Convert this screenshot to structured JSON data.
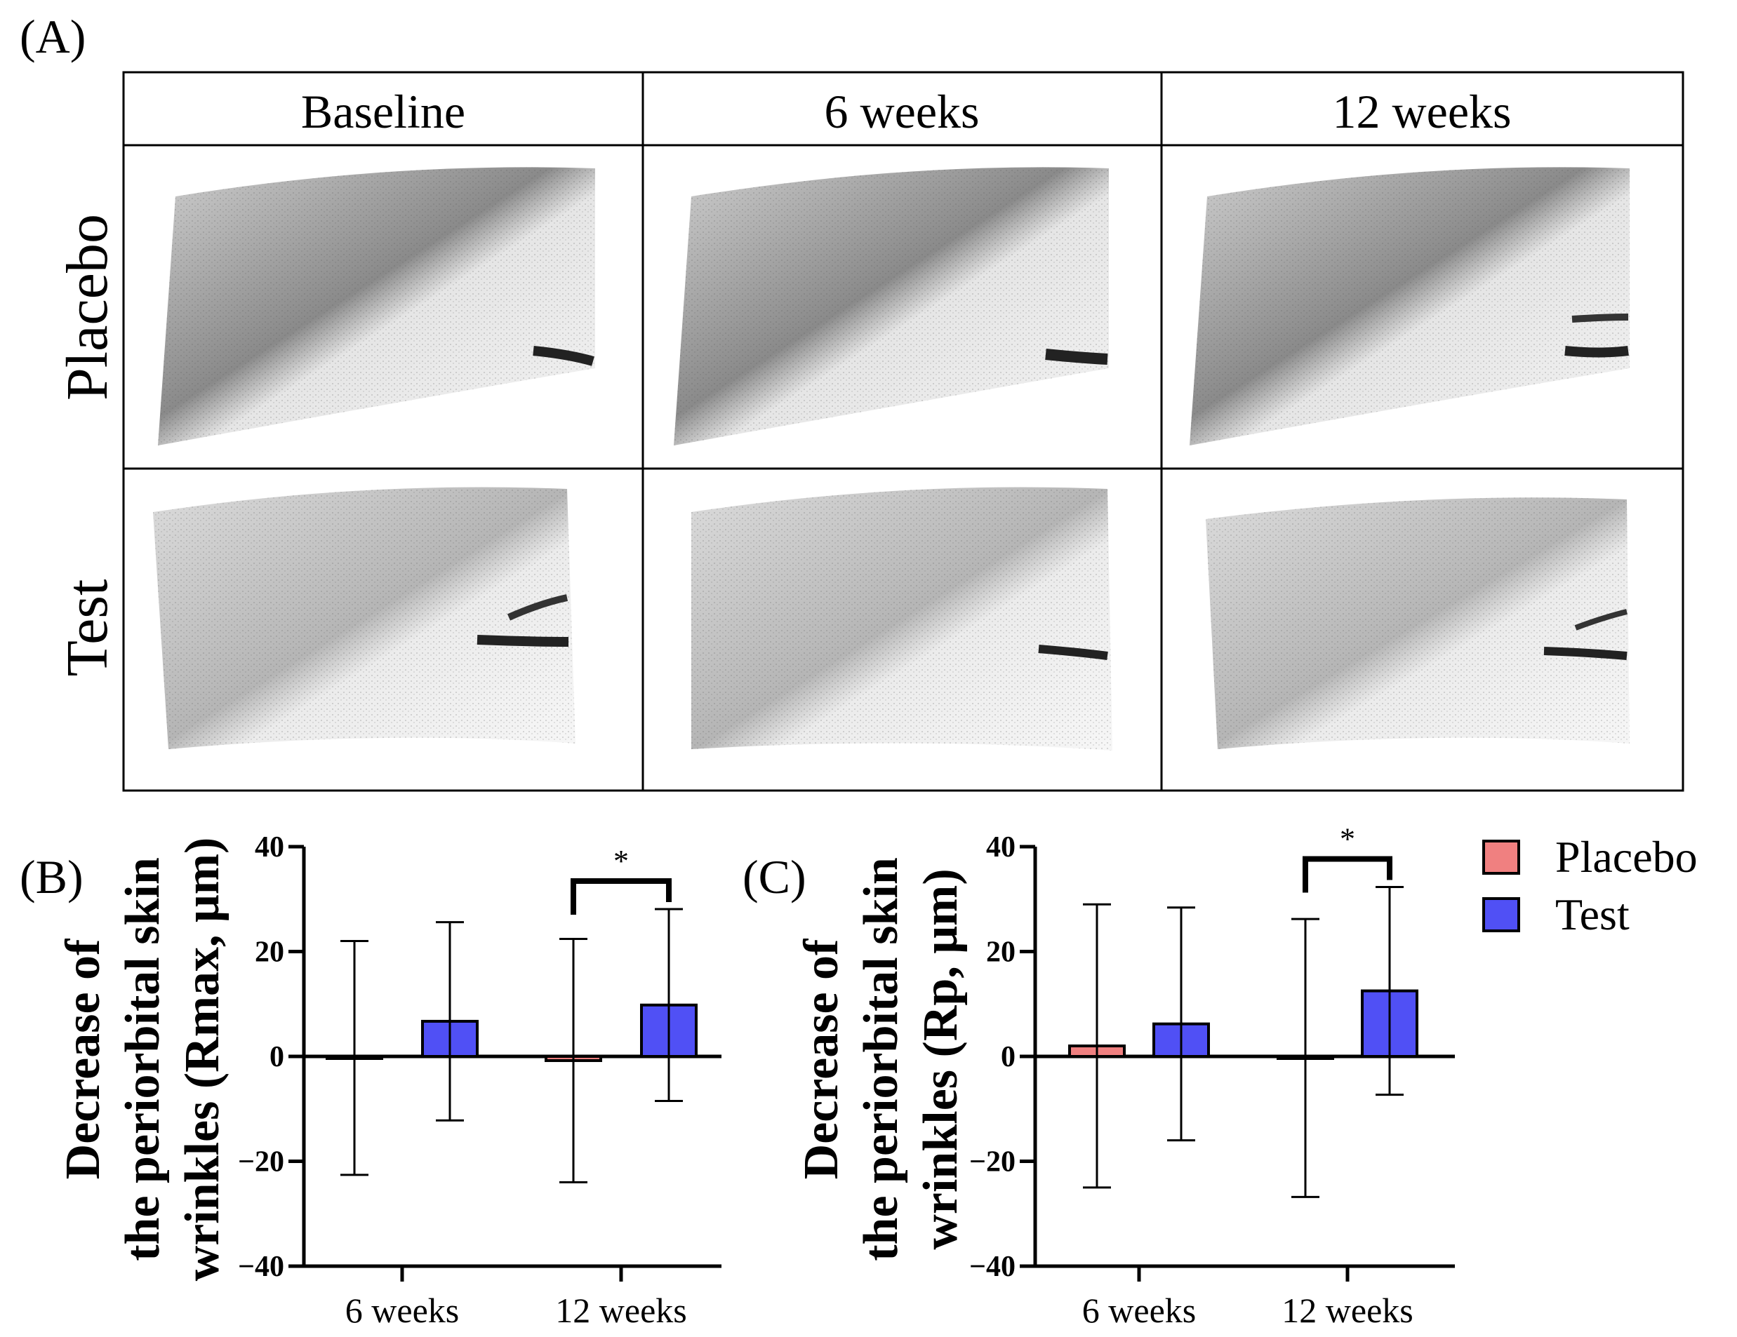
{
  "panel_a": {
    "label": "(A)",
    "columns": [
      "Baseline",
      "6 weeks",
      "12 weeks"
    ],
    "rows": [
      "Placebo",
      "Test"
    ]
  },
  "chart_data": [
    {
      "type": "bar",
      "panel_label": "(B)",
      "title": "",
      "xlabel": "",
      "ylabel_lines": [
        "Decrease of",
        "the periorbital skin",
        "wrinkles (Rmax, μm)"
      ],
      "ylim": [
        -40,
        40
      ],
      "yticks": [
        "40",
        "20",
        "0",
        "−20",
        "−40"
      ],
      "ytick_values": [
        40,
        20,
        0,
        -20,
        -40
      ],
      "categories": [
        "6 weeks",
        "12 weeks"
      ],
      "series": [
        {
          "name": "Placebo",
          "values": [
            -0.3,
            -0.8
          ],
          "err": [
            22.3,
            23.2
          ],
          "color": "#f08080"
        },
        {
          "name": "Test",
          "values": [
            6.7,
            9.8
          ],
          "err": [
            18.9,
            18.3
          ],
          "color": "#5050f5"
        }
      ],
      "significance": [
        {
          "category": "12 weeks",
          "label": "*"
        }
      ]
    },
    {
      "type": "bar",
      "panel_label": "(C)",
      "title": "",
      "xlabel": "",
      "ylabel_lines": [
        "Decrease of",
        "the periorbital skin",
        "wrinkles (Rp, μm)"
      ],
      "ylim": [
        -40,
        40
      ],
      "yticks": [
        "40",
        "20",
        "0",
        "−20",
        "−40"
      ],
      "ytick_values": [
        40,
        20,
        0,
        -20,
        -40
      ],
      "categories": [
        "6 weeks",
        "12 weeks"
      ],
      "series": [
        {
          "name": "Placebo",
          "values": [
            2.0,
            -0.3
          ],
          "err": [
            27.0,
            26.5
          ],
          "color": "#f08080"
        },
        {
          "name": "Test",
          "values": [
            6.2,
            12.5
          ],
          "err": [
            22.2,
            19.8
          ],
          "color": "#5050f5"
        }
      ],
      "significance": [
        {
          "category": "12 weeks",
          "label": "*"
        }
      ]
    }
  ],
  "legend": {
    "entries": [
      {
        "label": "Placebo",
        "color": "#f08080"
      },
      {
        "label": "Test",
        "color": "#5050f5"
      }
    ]
  }
}
